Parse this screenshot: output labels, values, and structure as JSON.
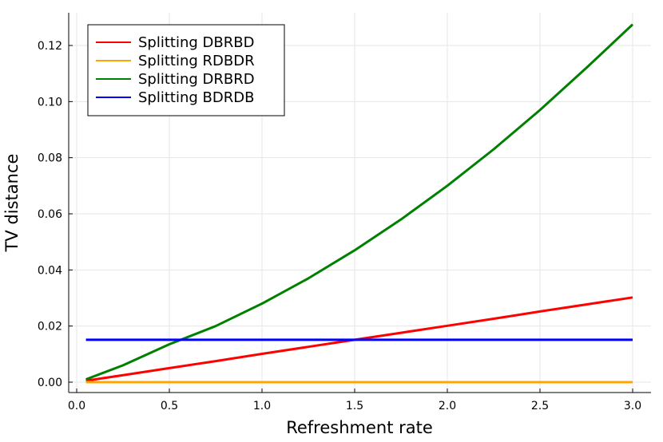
{
  "chart_data": {
    "type": "line",
    "xlabel": "Refreshment rate",
    "ylabel": "TV distance",
    "xlim": [
      0.0,
      3.0
    ],
    "ylim": [
      0.0,
      0.12
    ],
    "xticks": [
      0.0,
      0.5,
      1.0,
      1.5,
      2.0,
      2.5,
      3.0
    ],
    "xtick_labels": [
      "0.0",
      "0.5",
      "1.0",
      "1.5",
      "2.0",
      "2.5",
      "3.0"
    ],
    "yticks": [
      0.0,
      0.02,
      0.04,
      0.06,
      0.08,
      0.1,
      0.12
    ],
    "ytick_labels": [
      "0.00",
      "0.02",
      "0.04",
      "0.06",
      "0.08",
      "0.10",
      "0.12"
    ],
    "grid": true,
    "legend_position": "top-left",
    "x": [
      0.05,
      0.25,
      0.5,
      0.75,
      1.0,
      1.25,
      1.5,
      1.75,
      2.0,
      2.25,
      2.5,
      2.75,
      3.0
    ],
    "series": [
      {
        "name": "Splitting DBRBD",
        "color": "#ff0000",
        "values": [
          0.0005,
          0.0025,
          0.005,
          0.0075,
          0.0101,
          0.0126,
          0.0151,
          0.0176,
          0.0201,
          0.0226,
          0.0252,
          0.0277,
          0.0302
        ]
      },
      {
        "name": "Splitting RDBDR",
        "color": "#ffa500",
        "values": [
          0.0,
          0.0,
          0.0,
          0.0,
          0.0,
          0.0,
          0.0,
          0.0,
          0.0,
          0.0,
          0.0,
          0.0,
          0.0
        ]
      },
      {
        "name": "Splitting DRBRD",
        "color": "#008000",
        "values": [
          0.001,
          0.006,
          0.0135,
          0.02,
          0.028,
          0.037,
          0.047,
          0.058,
          0.07,
          0.083,
          0.097,
          0.112,
          0.1275
        ]
      },
      {
        "name": "Splitting BDRDB",
        "color": "#0000ff",
        "values": [
          0.0151,
          0.0151,
          0.0151,
          0.0151,
          0.0151,
          0.0151,
          0.0151,
          0.0151,
          0.0151,
          0.0151,
          0.0151,
          0.0151,
          0.0151
        ]
      }
    ]
  }
}
